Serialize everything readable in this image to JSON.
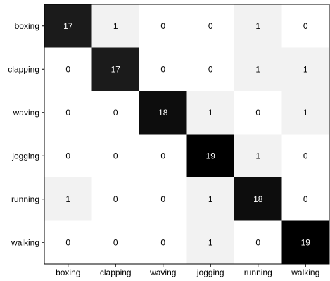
{
  "chart_data": {
    "type": "heatmap",
    "title": "",
    "xlabel": "",
    "ylabel": "",
    "row_labels": [
      "boxing",
      "clapping",
      "waving",
      "jogging",
      "running",
      "walking"
    ],
    "col_labels": [
      "boxing",
      "clapping",
      "waving",
      "jogging",
      "running",
      "walking"
    ],
    "values": [
      [
        17,
        1,
        0,
        0,
        1,
        0
      ],
      [
        0,
        17,
        0,
        0,
        1,
        1
      ],
      [
        0,
        0,
        18,
        1,
        0,
        1
      ],
      [
        0,
        0,
        0,
        19,
        1,
        0
      ],
      [
        1,
        0,
        0,
        1,
        18,
        0
      ],
      [
        0,
        0,
        0,
        1,
        0,
        19
      ]
    ],
    "color_scale": {
      "low": "#ffffff",
      "high": "#000000"
    },
    "grid": false,
    "legend": "none"
  }
}
